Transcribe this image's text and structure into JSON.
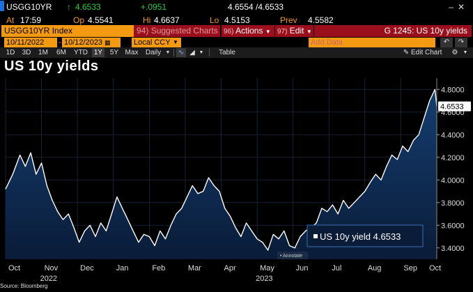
{
  "quote": {
    "ticker": "USGG10YR",
    "last": "4.6533",
    "change": "+.0951",
    "bid_ask": "4.6554 /4.6533",
    "at_label": "At",
    "time": "17:59",
    "open_label": "Op",
    "open": "4.5541",
    "high_label": "Hi",
    "high": "4.6637",
    "low_label": "Lo",
    "low": "4.5153",
    "prev_label": "Prev",
    "prev": "4.5582"
  },
  "menubar": {
    "index_label": "USGG10YR Index",
    "suggested_num": "94)",
    "suggested_label": "Suggested Charts",
    "actions_num": "96)",
    "actions_label": "Actions",
    "edit_num": "97)",
    "edit_label": "Edit",
    "graph_id": "G 1245: US 10y yields"
  },
  "daterow": {
    "start_date": "10/11/2022",
    "end_date": "10/12/2023",
    "currency": "Local CCY",
    "add_data_placeholder": "Add Data"
  },
  "toolbar": {
    "periods": [
      "1D",
      "3D",
      "1M",
      "6M",
      "YTD",
      "1Y",
      "5Y",
      "Max"
    ],
    "active_period": "1Y",
    "frequency": "Daily",
    "table_label": "Table",
    "edit_chart_label": "Edit Chart"
  },
  "colors": {
    "bloomberg_orange": "#f39a12",
    "bloomberg_red": "#9b0e1c",
    "up_green": "#2ecc40",
    "area_fill_top": "#123a6b",
    "area_fill_bottom": "#0a1d3a"
  },
  "chart_data": {
    "type": "area",
    "title": "US 10y yields",
    "series": [
      {
        "name": "US 10y yield",
        "last_value": "4.6533"
      }
    ],
    "legend_label": "US 10y yield",
    "legend_value": "4.6533",
    "last_value_label": "4.6533",
    "annotate_label": "Annotate",
    "ylim": [
      3.3,
      4.9
    ],
    "y_ticks": [
      3.4,
      3.6,
      3.8,
      4.0,
      4.2,
      4.4,
      4.6,
      4.8
    ],
    "y_tick_labels": [
      "3.4000",
      "3.6000",
      "3.8000",
      "4.0000",
      "4.2000",
      "4.4000",
      "4.6000",
      "4.8000"
    ],
    "x_month_labels": [
      "Oct",
      "Nov",
      "Dec",
      "Jan",
      "Feb",
      "Mar",
      "Apr",
      "May",
      "Jun",
      "Jul",
      "Aug",
      "Sep",
      "Oct"
    ],
    "x_year_labels": [
      {
        "label": "2022",
        "month_index": 1
      },
      {
        "label": "2023",
        "month_index": 7
      }
    ],
    "x": [
      0.0,
      0.2,
      0.4,
      0.55,
      0.7,
      0.85,
      1.0,
      1.15,
      1.3,
      1.45,
      1.6,
      1.75,
      1.9,
      2.05,
      2.2,
      2.35,
      2.5,
      2.65,
      2.8,
      2.95,
      3.1,
      3.25,
      3.4,
      3.55,
      3.7,
      3.85,
      4.0,
      4.15,
      4.3,
      4.45,
      4.6,
      4.75,
      4.9,
      5.05,
      5.2,
      5.35,
      5.5,
      5.65,
      5.8,
      5.95,
      6.1,
      6.25,
      6.4,
      6.55,
      6.7,
      6.85,
      7.0,
      7.15,
      7.3,
      7.45,
      7.6,
      7.75,
      7.9,
      8.05,
      8.2,
      8.35,
      8.5,
      8.65,
      8.8,
      8.95,
      9.1,
      9.25,
      9.4,
      9.55,
      9.7,
      9.85,
      10.0,
      10.15,
      10.3,
      10.45,
      10.6,
      10.75,
      10.9,
      11.05,
      11.2,
      11.35,
      11.5,
      11.65,
      11.8,
      11.95,
      12.0
    ],
    "y": [
      3.92,
      4.05,
      4.22,
      4.12,
      4.24,
      4.05,
      4.15,
      3.95,
      3.82,
      3.72,
      3.65,
      3.7,
      3.58,
      3.45,
      3.55,
      3.6,
      3.5,
      3.62,
      3.55,
      3.7,
      3.85,
      3.75,
      3.65,
      3.55,
      3.45,
      3.52,
      3.5,
      3.42,
      3.55,
      3.48,
      3.6,
      3.7,
      3.75,
      3.85,
      3.95,
      3.88,
      3.9,
      4.02,
      3.95,
      3.9,
      3.75,
      3.68,
      3.58,
      3.5,
      3.62,
      3.55,
      3.48,
      3.45,
      3.38,
      3.52,
      3.48,
      3.55,
      3.42,
      3.4,
      3.5,
      3.55,
      3.58,
      3.62,
      3.75,
      3.72,
      3.78,
      3.7,
      3.82,
      3.75,
      3.8,
      3.85,
      3.9,
      3.98,
      4.05,
      4.0,
      4.12,
      4.22,
      4.18,
      4.3,
      4.25,
      4.35,
      4.4,
      4.55,
      4.7,
      4.8,
      4.65
    ]
  }
}
